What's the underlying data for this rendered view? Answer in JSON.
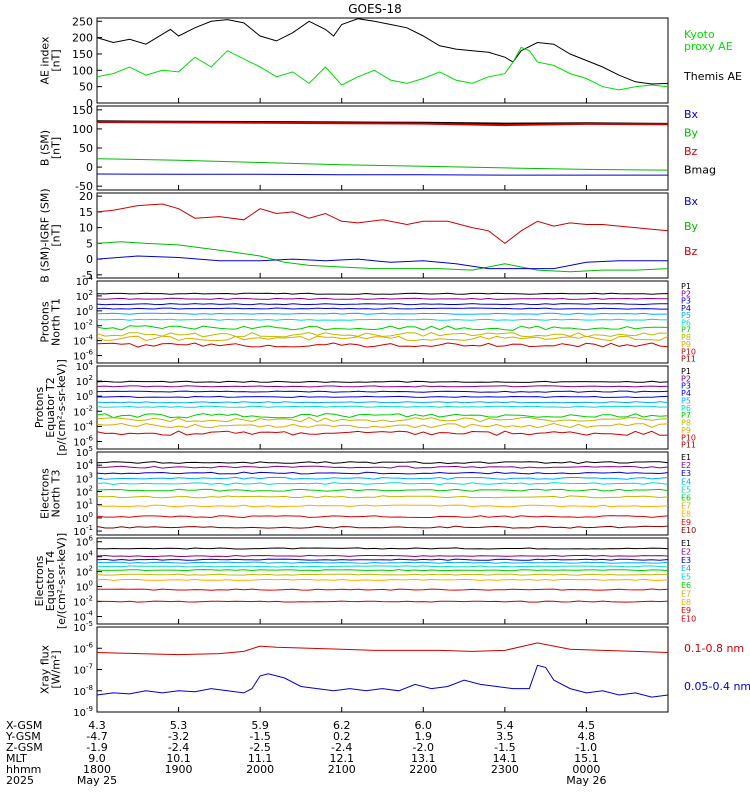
{
  "title": "GOES-18",
  "chart_data": [
    {
      "id": "ae",
      "type": "line",
      "ylabel": [
        "AE index",
        "[nT]"
      ],
      "ylim": [
        0,
        260
      ],
      "yticks": [
        "0",
        "50",
        "100",
        "150",
        "200",
        "250"
      ],
      "legend": [
        {
          "label": "Kyoto",
          "color": "#00dd00"
        },
        {
          "label": "proxy AE",
          "color": "#00dd00"
        },
        {
          "label": "Themis AE",
          "color": "#000000"
        }
      ],
      "series": [
        {
          "color": "#000000",
          "x": [
            0,
            0.2,
            0.4,
            0.6,
            0.8,
            0.9,
            1.0,
            1.2,
            1.4,
            1.6,
            1.8,
            2.0,
            2.2,
            2.4,
            2.6,
            2.8,
            2.9,
            3.0,
            3.2,
            3.4,
            3.6,
            3.8,
            4.0,
            4.2,
            4.3,
            4.4,
            4.6,
            4.8,
            5.0,
            5.1,
            5.2,
            5.4,
            5.6,
            5.8,
            6.0,
            6.2,
            6.4,
            6.6,
            6.8,
            7.0
          ],
          "y": [
            200,
            185,
            195,
            180,
            210,
            225,
            205,
            230,
            250,
            255,
            245,
            205,
            190,
            215,
            250,
            225,
            205,
            240,
            258,
            250,
            240,
            230,
            205,
            175,
            170,
            165,
            160,
            155,
            140,
            125,
            160,
            185,
            180,
            150,
            130,
            110,
            85,
            65,
            58,
            60
          ]
        },
        {
          "color": "#00dd00",
          "x": [
            0,
            0.2,
            0.4,
            0.6,
            0.8,
            1.0,
            1.2,
            1.4,
            1.6,
            1.8,
            2.0,
            2.2,
            2.4,
            2.6,
            2.8,
            3.0,
            3.2,
            3.4,
            3.6,
            3.8,
            4.0,
            4.2,
            4.4,
            4.6,
            4.8,
            5.0,
            5.1,
            5.2,
            5.3,
            5.4,
            5.6,
            5.8,
            6.0,
            6.2,
            6.4,
            6.6,
            6.8,
            7.0
          ],
          "y": [
            80,
            90,
            110,
            85,
            100,
            95,
            140,
            110,
            160,
            135,
            110,
            80,
            95,
            60,
            110,
            55,
            80,
            100,
            70,
            60,
            75,
            95,
            70,
            60,
            80,
            90,
            125,
            170,
            160,
            125,
            115,
            90,
            75,
            50,
            40,
            50,
            55,
            50
          ]
        }
      ]
    },
    {
      "id": "bsm",
      "type": "line",
      "ylabel": [
        "B (SM)",
        "[nT]"
      ],
      "ylim": [
        -60,
        160
      ],
      "yticks": [
        "-50",
        "0",
        "50",
        "100",
        "150"
      ],
      "legend": [
        {
          "label": "Bx",
          "color": "#0000cc"
        },
        {
          "label": "By",
          "color": "#00bb00"
        },
        {
          "label": "Bz",
          "color": "#cc0000"
        },
        {
          "label": "Bmag",
          "color": "#000000"
        }
      ],
      "series": [
        {
          "color": "#000000",
          "x": [
            0,
            1,
            2,
            3,
            4,
            5,
            6,
            7
          ],
          "y": [
            120,
            119,
            118,
            117,
            116,
            114,
            115,
            113
          ]
        },
        {
          "color": "#cc0000",
          "x": [
            0,
            1,
            2,
            3,
            4,
            5,
            6,
            7
          ],
          "y": [
            118,
            117,
            116,
            115,
            114,
            110,
            113,
            112
          ]
        },
        {
          "color": "#00bb00",
          "x": [
            0,
            1,
            2,
            3,
            4,
            5,
            6,
            7
          ],
          "y": [
            22,
            18,
            12,
            6,
            2,
            -2,
            -6,
            -8
          ]
        },
        {
          "color": "#0000cc",
          "x": [
            0,
            1,
            2,
            3,
            4,
            5,
            6,
            7
          ],
          "y": [
            -18,
            -19,
            -19,
            -20,
            -20,
            -21,
            -21,
            -21
          ]
        }
      ]
    },
    {
      "id": "bigrf",
      "type": "line",
      "ylabel": [
        "B (SM)-IGRF (SM)",
        "[nT]"
      ],
      "ylim": [
        -6,
        21
      ],
      "yticks": [
        "-5",
        "0",
        "5",
        "10",
        "15",
        "20"
      ],
      "legend": [
        {
          "label": "Bx",
          "color": "#0000cc"
        },
        {
          "label": "By",
          "color": "#00bb00"
        },
        {
          "label": "Bz",
          "color": "#cc0000"
        }
      ],
      "series": [
        {
          "color": "#cc0000",
          "x": [
            0,
            0.2,
            0.5,
            0.8,
            1.0,
            1.2,
            1.5,
            1.8,
            2.0,
            2.2,
            2.4,
            2.6,
            2.8,
            3.0,
            3.2,
            3.5,
            3.8,
            4.0,
            4.3,
            4.6,
            4.8,
            5.0,
            5.2,
            5.4,
            5.6,
            5.8,
            6.0,
            6.2,
            6.4,
            6.6,
            6.8,
            7.0
          ],
          "y": [
            15,
            15.5,
            17,
            17.5,
            16,
            13,
            13.5,
            12.5,
            16,
            14.5,
            15,
            13,
            14.5,
            12,
            11.5,
            12.5,
            11,
            12,
            12,
            10,
            9,
            5,
            9,
            12,
            10.5,
            11.5,
            11,
            11,
            10.5,
            10,
            9.5,
            9
          ]
        },
        {
          "color": "#00bb00",
          "x": [
            0,
            0.3,
            0.6,
            1.0,
            1.3,
            1.6,
            2.0,
            2.3,
            2.6,
            3.0,
            3.4,
            3.8,
            4.2,
            4.6,
            5.0,
            5.2,
            5.4,
            5.8,
            6.2,
            6.6,
            7.0
          ],
          "y": [
            5,
            5.5,
            5,
            4.5,
            3.5,
            2.5,
            1,
            -1,
            -2,
            -2.5,
            -3,
            -3,
            -3,
            -3.5,
            -1.5,
            -2.5,
            -3.5,
            -4,
            -3.5,
            -3.5,
            -3
          ]
        },
        {
          "color": "#0000cc",
          "x": [
            0,
            0.5,
            1.0,
            1.5,
            2.0,
            2.4,
            2.8,
            3.2,
            3.6,
            4.0,
            4.4,
            4.8,
            5.2,
            5.6,
            6.0,
            6.4,
            6.8,
            7.0
          ],
          "y": [
            0,
            1,
            0.5,
            -0.5,
            -0.5,
            0,
            -0.5,
            0,
            -1,
            -0.5,
            -1.5,
            -3,
            -3,
            -3,
            -1,
            -0.5,
            -0.5,
            -0.5
          ]
        }
      ]
    },
    {
      "id": "protons_t1",
      "type": "line",
      "log": true,
      "ylabel": [
        "Protons",
        "North T1"
      ],
      "ylim_exp": [
        -7,
        4
      ],
      "yticks_exp": [
        -6,
        -4,
        -2,
        0,
        2,
        4
      ],
      "channels": [
        {
          "label": "P1",
          "color": "#000000",
          "level": 2.3
        },
        {
          "label": "P2",
          "color": "#880088",
          "level": 1.6
        },
        {
          "label": "P3",
          "color": "#0000cc",
          "level": 0.9
        },
        {
          "label": "P4",
          "color": "#0000ee",
          "level": 0.3
        },
        {
          "label": "P5",
          "color": "#00aaff",
          "level": -0.4
        },
        {
          "label": "P6",
          "color": "#00ddcc",
          "level": -1.2
        },
        {
          "label": "P7",
          "color": "#00cc00",
          "level": -2.3
        },
        {
          "label": "P8",
          "color": "#bbbb00",
          "level": -3.2
        },
        {
          "label": "P9",
          "color": "#ddaa00",
          "level": -3.7
        },
        {
          "label": "P10",
          "color": "#cc0000",
          "level": -4.6
        },
        {
          "label": "P11",
          "color": "#880000",
          "level": -99
        }
      ]
    },
    {
      "id": "protons_t2",
      "type": "line",
      "log": true,
      "ylabel": [
        "Protons",
        "Equator T2",
        "[p/(cm²-s-sr-keV)]"
      ],
      "ylim_exp": [
        -7,
        4
      ],
      "yticks_exp": [
        -6,
        -4,
        -2,
        0,
        2,
        4
      ],
      "channels": [
        {
          "label": "P1",
          "color": "#000000",
          "level": 1.9
        },
        {
          "label": "P2",
          "color": "#880088",
          "level": 1.3
        },
        {
          "label": "P3",
          "color": "#0000cc",
          "level": 0.6
        },
        {
          "label": "P4",
          "color": "#0000ee",
          "level": -0.1
        },
        {
          "label": "P5",
          "color": "#00aaff",
          "level": -0.8
        },
        {
          "label": "P6",
          "color": "#00ddcc",
          "level": -1.4
        },
        {
          "label": "P7",
          "color": "#00cc00",
          "level": -2.6
        },
        {
          "label": "P8",
          "color": "#bbbb00",
          "level": -3.1
        },
        {
          "label": "P9",
          "color": "#ddaa00",
          "level": -3.9
        },
        {
          "label": "P10",
          "color": "#cc0000",
          "level": -4.9
        },
        {
          "label": "P11",
          "color": "#880000",
          "level": -99
        }
      ]
    },
    {
      "id": "electrons_t3",
      "type": "line",
      "log": true,
      "ylabel": [
        "Electrons",
        "North T3"
      ],
      "ylim_exp": [
        -1.3,
        5
      ],
      "yticks_exp": [
        -1,
        0,
        1,
        2,
        3,
        4,
        5
      ],
      "channels": [
        {
          "label": "E1",
          "color": "#000000",
          "level": 4.2
        },
        {
          "label": "E2",
          "color": "#880088",
          "level": 3.85
        },
        {
          "label": "E3",
          "color": "#0000cc",
          "level": 3.4
        },
        {
          "label": "E4",
          "color": "#00aaff",
          "level": 3.0
        },
        {
          "label": "E5",
          "color": "#00ddcc",
          "level": 2.6
        },
        {
          "label": "E6",
          "color": "#00cc00",
          "level": 2.1
        },
        {
          "label": "E7",
          "color": "#bbbb00",
          "level": 1.6
        },
        {
          "label": "E8",
          "color": "#ffaa00",
          "level": 0.9
        },
        {
          "label": "E9",
          "color": "#dd0000",
          "level": 0.1
        },
        {
          "label": "E10",
          "color": "#880000",
          "level": -0.7
        }
      ]
    },
    {
      "id": "electrons_t4",
      "type": "line",
      "log": true,
      "ylabel": [
        "Electrons",
        "Equator T4",
        "[e/(cm²-s-sr-keV)]"
      ],
      "ylim_exp": [
        -5,
        6.5
      ],
      "yticks_exp": [
        -4,
        -2,
        0,
        2,
        4,
        6
      ],
      "channels": [
        {
          "label": "E1",
          "color": "#000000",
          "level": 5.1
        },
        {
          "label": "E2",
          "color": "#880088",
          "level": 4.1
        },
        {
          "label": "E3",
          "color": "#0000cc",
          "level": 3.6
        },
        {
          "label": "E4",
          "color": "#00aaff",
          "level": 3.2
        },
        {
          "label": "E5",
          "color": "#00ddcc",
          "level": 2.7
        },
        {
          "label": "E6",
          "color": "#00cc00",
          "level": 2.2
        },
        {
          "label": "E7",
          "color": "#bbbb00",
          "level": 1.6
        },
        {
          "label": "E8",
          "color": "#ffaa00",
          "level": 0.9
        },
        {
          "label": "E9",
          "color": "#dd0000",
          "level": -0.4
        },
        {
          "label": "E10",
          "color": "#cc0000",
          "level": -2.0
        }
      ]
    },
    {
      "id": "xray",
      "type": "line",
      "log": true,
      "ylabel": [
        "Xray flux",
        "[W/m²]"
      ],
      "ylim_exp": [
        -9,
        -5
      ],
      "yticks_exp": [
        -9,
        -8,
        -7,
        -6,
        -5
      ],
      "legend": [
        {
          "label": "0.1-0.8 nm",
          "color": "#cc0000"
        },
        {
          "label": "0.05-0.4 nm",
          "color": "#0000cc"
        }
      ],
      "series": [
        {
          "color": "#cc0000",
          "x": [
            0,
            0.5,
            1.0,
            1.5,
            1.8,
            2.0,
            2.2,
            2.6,
            3.0,
            3.4,
            3.8,
            4.2,
            4.6,
            5.0,
            5.4,
            5.6,
            5.8,
            6.2,
            6.6,
            7.0
          ],
          "y": [
            -6.2,
            -6.25,
            -6.3,
            -6.25,
            -6.15,
            -5.9,
            -5.95,
            -6.0,
            -6.05,
            -6.1,
            -6.1,
            -6.1,
            -6.15,
            -6.1,
            -5.75,
            -5.9,
            -6.05,
            -6.1,
            -6.15,
            -6.2
          ]
        },
        {
          "color": "#0000cc",
          "x": [
            0,
            0.2,
            0.4,
            0.6,
            0.8,
            1.0,
            1.2,
            1.4,
            1.6,
            1.8,
            1.9,
            2.0,
            2.1,
            2.3,
            2.5,
            2.7,
            2.9,
            3.1,
            3.3,
            3.5,
            3.7,
            3.9,
            4.1,
            4.3,
            4.5,
            4.7,
            4.9,
            5.1,
            5.3,
            5.4,
            5.5,
            5.6,
            5.8,
            6.0,
            6.2,
            6.4,
            6.6,
            6.8,
            7.0
          ],
          "y": [
            -8.2,
            -8.1,
            -8.15,
            -8.0,
            -8.1,
            -8.0,
            -8.05,
            -7.9,
            -8.0,
            -8.1,
            -7.9,
            -7.3,
            -7.2,
            -7.4,
            -7.8,
            -7.9,
            -8.0,
            -7.9,
            -8.0,
            -7.9,
            -8.0,
            -7.7,
            -7.9,
            -7.8,
            -7.5,
            -7.7,
            -7.8,
            -7.9,
            -7.9,
            -6.8,
            -6.9,
            -7.5,
            -7.9,
            -8.1,
            -8.0,
            -8.2,
            -8.1,
            -8.3,
            -8.2
          ]
        }
      ]
    }
  ],
  "x_axis": {
    "row_labels": [
      "X-GSM",
      "Y-GSM",
      "Z-GSM",
      "MLT",
      "hhmm",
      "2025"
    ],
    "columns": [
      [
        "4.3",
        "-4.7",
        "-1.9",
        "9.0",
        "1800",
        "May 25"
      ],
      [
        "5.3",
        "-3.2",
        "-2.4",
        "10.1",
        "1900",
        ""
      ],
      [
        "5.9",
        "-1.5",
        "-2.5",
        "11.1",
        "2000",
        ""
      ],
      [
        "6.2",
        "0.2",
        "-2.4",
        "12.1",
        "2100",
        ""
      ],
      [
        "6.0",
        "1.9",
        "-2.0",
        "13.1",
        "2200",
        ""
      ],
      [
        "5.4",
        "3.5",
        "-1.5",
        "14.1",
        "2300",
        ""
      ],
      [
        "4.5",
        "4.8",
        "-1.0",
        "15.1",
        "0000",
        "May 26"
      ]
    ]
  }
}
